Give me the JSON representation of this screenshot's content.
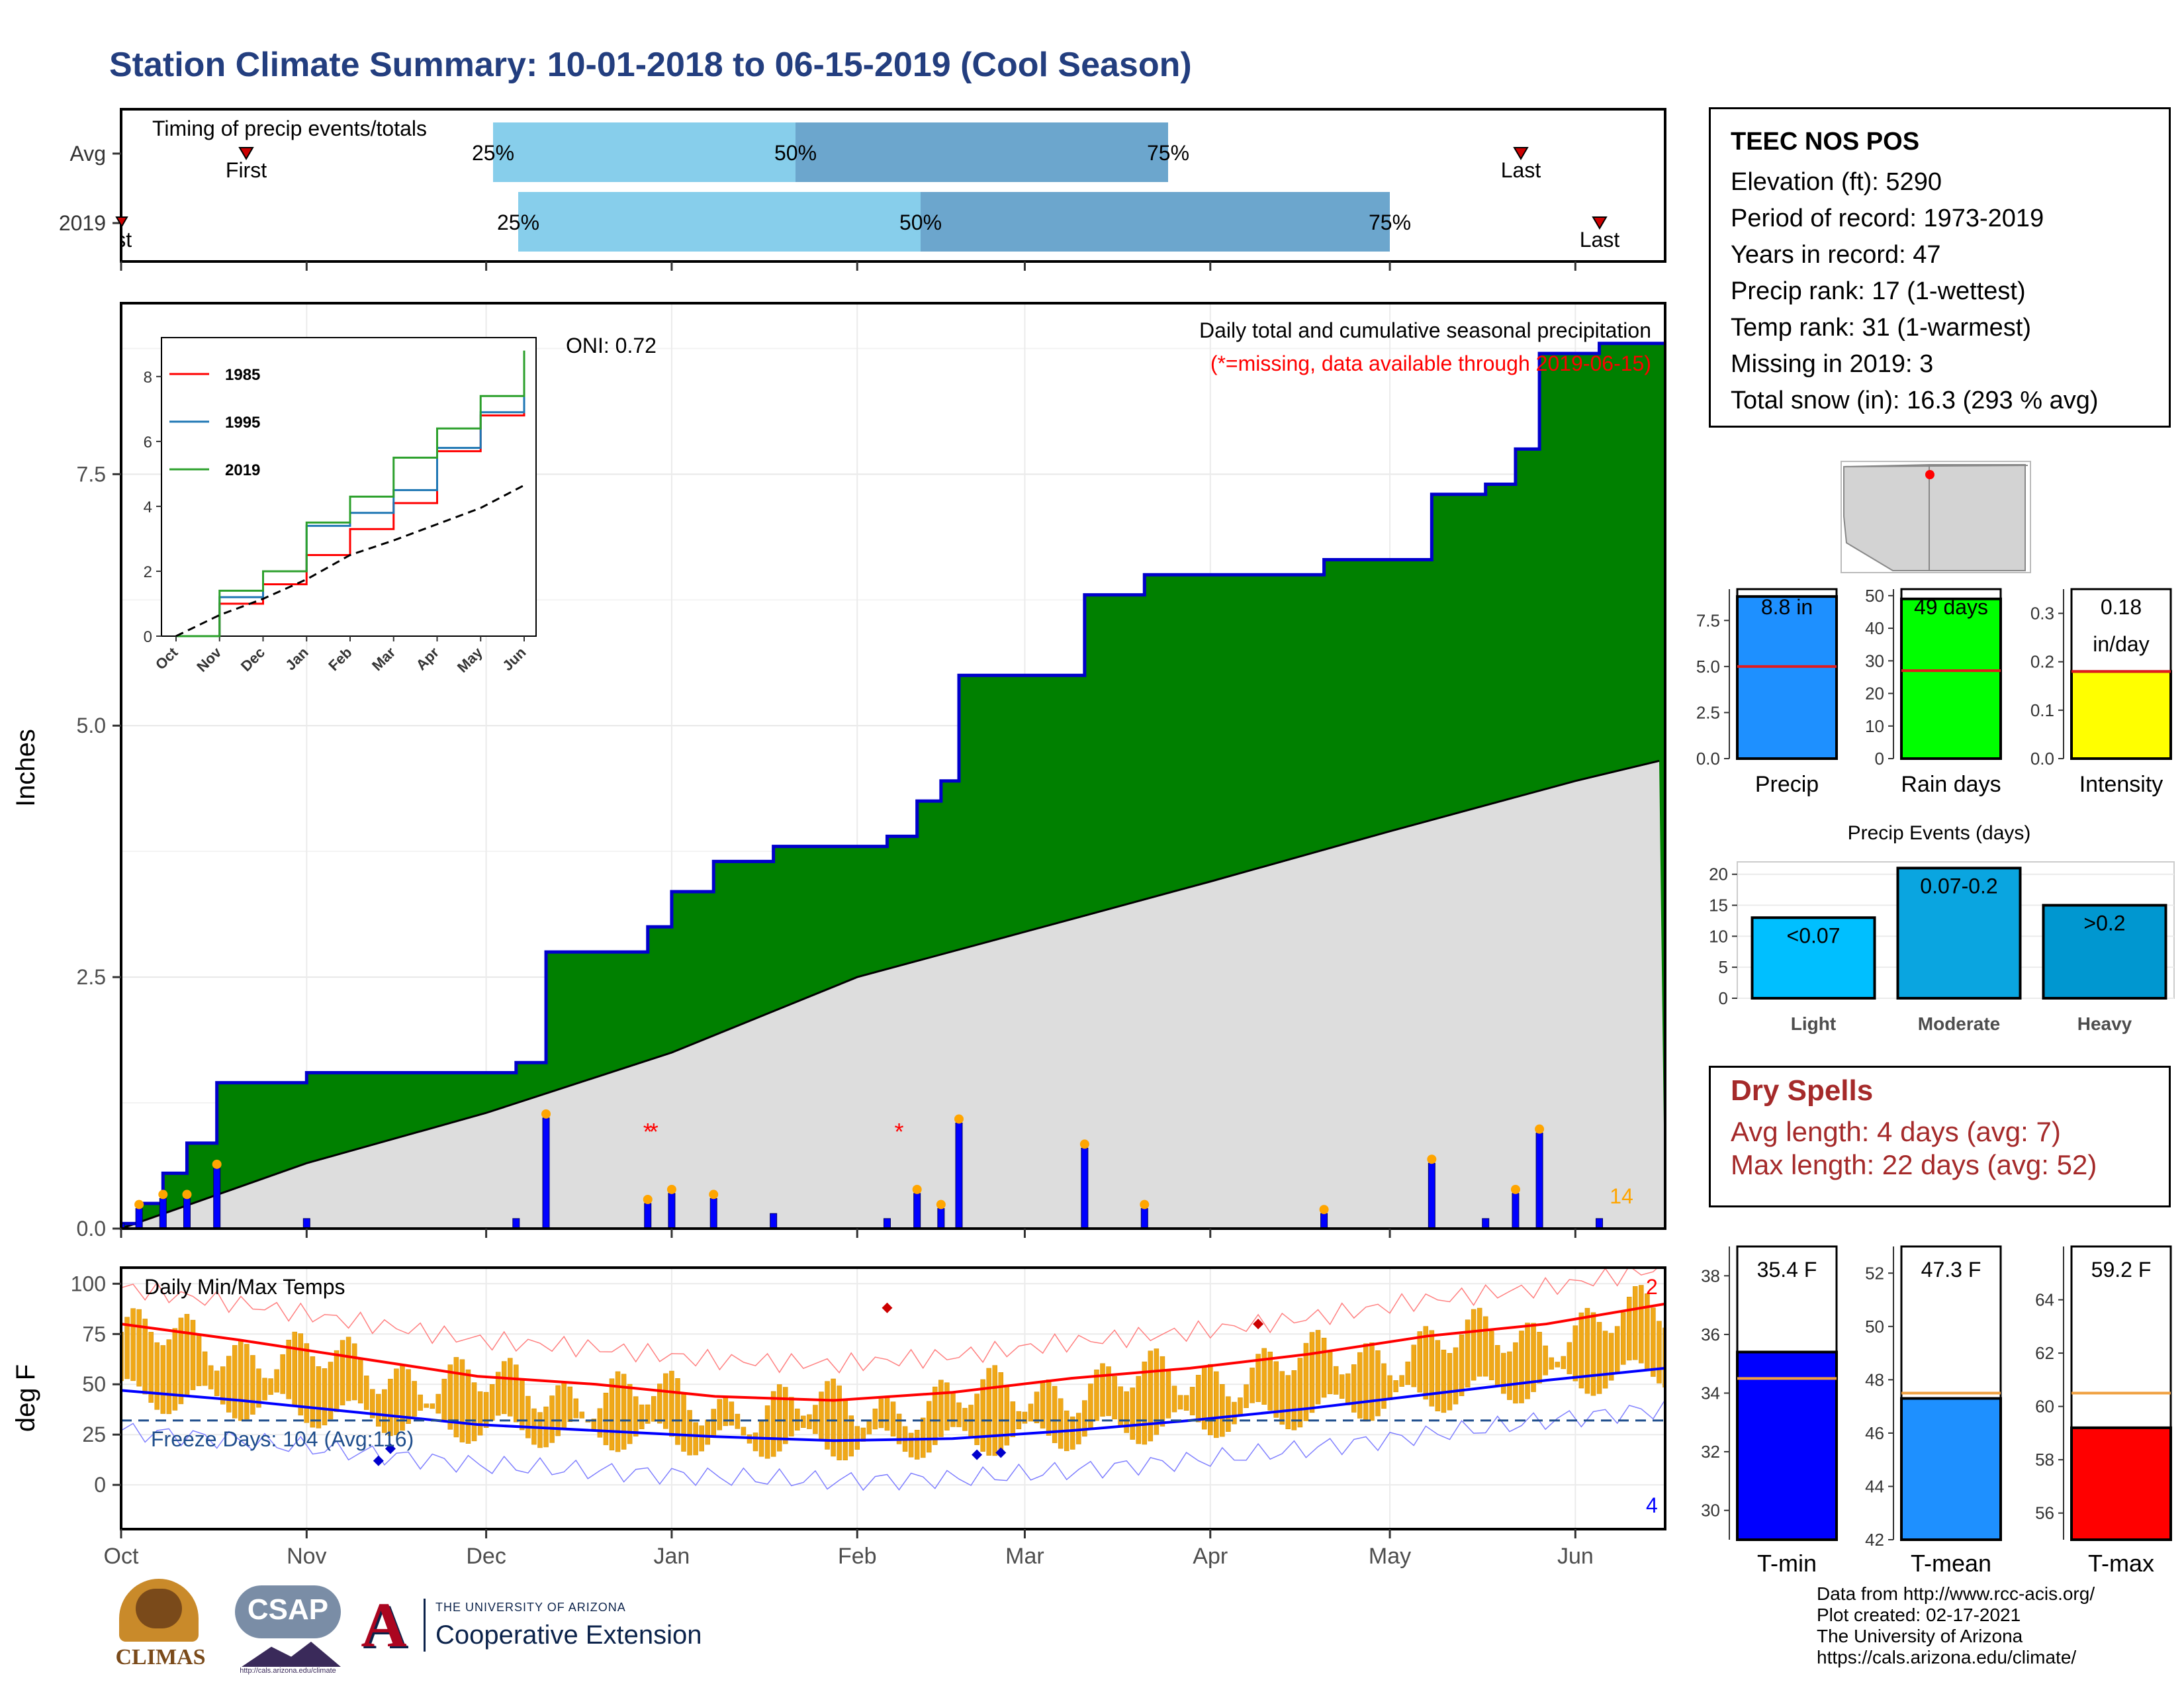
{
  "title": "Station Climate Summary: 10-01-2018 to 06-15-2019 (Cool Season)",
  "timing": {
    "label": "Timing of precip events/totals",
    "rows": [
      {
        "name": "Avg",
        "first": "First",
        "last": "Last",
        "p25": "25%",
        "p50": "50%",
        "p75": "75%"
      },
      {
        "name": "2019",
        "first": "First",
        "last": "Last",
        "p25": "25%",
        "p50": "50%",
        "p75": "75%"
      }
    ]
  },
  "station": {
    "name": "TEEC NOS POS",
    "elevation": "Elevation (ft): 5290",
    "period": "Period of record: 1973-2019",
    "years": "Years in record: 47",
    "precip_rank": "Precip rank: 17 (1-wettest)",
    "temp_rank": "Temp rank: 31 (1-warmest)",
    "missing": "Missing in 2019: 3",
    "snow": "Total snow (in): 16.3 (293 % avg)"
  },
  "precip_panel": {
    "title": "Daily total and cumulative seasonal precipitation",
    "note": "(*=missing, data available through 2019-06-15)",
    "ylabel": "Inches",
    "oni": "ONI: 0.72",
    "count_label": "14"
  },
  "temp_panel": {
    "title": "Daily Min/Max Temps",
    "ylabel": "deg F",
    "freeze": "Freeze Days: 104 (Avg:116)",
    "record_high_count": "2",
    "record_low_count": "4"
  },
  "bars": {
    "precip": {
      "value": "8.8 in",
      "label": "Precip"
    },
    "rain_days": {
      "value": "49 days",
      "label": "Rain days"
    },
    "intensity": {
      "value": "0.18",
      "unit": "in/day",
      "label": "Intensity"
    }
  },
  "events": {
    "title": "Precip Events (days)",
    "categories": [
      "Light",
      "Moderate",
      "Heavy"
    ],
    "labels": [
      "<0.07",
      "0.07-0.2",
      ">0.2"
    ],
    "values": [
      13,
      21,
      15
    ]
  },
  "dry_spells": {
    "title": "Dry Spells",
    "avg": "Avg length: 4 days (avg: 7)",
    "max": "Max length: 22 days (avg: 52)"
  },
  "temp_summary": {
    "tmin": {
      "value": "35.4 F",
      "label": "T-min"
    },
    "tmean": {
      "value": "47.3 F",
      "label": "T-mean"
    },
    "tmax": {
      "value": "59.2 F",
      "label": "T-max"
    }
  },
  "credits": [
    "Data from http://www.rcc-acis.org/",
    "Plot created: 02-17-2021",
    "The University of Arizona",
    "https://cals.arizona.edu/climate/"
  ],
  "logos": {
    "climas": "CLIMAS",
    "csap": "CSAP",
    "csap_url": "http://cals.arizona.edu/climate",
    "ua_small": "THE UNIVERSITY OF ARIZONA",
    "ua_big": "Cooperative Extension"
  },
  "colors": {
    "title": "#233e7f",
    "cum_fill": "#008000",
    "cum_line": "#0000cc",
    "avg_fill": "#dddddd",
    "bar_precip": "#1e90ff",
    "bar_rain": "#00ff00",
    "bar_int": "#ffff00",
    "ev_light": "#00bfff",
    "ev_mod": "#0aa5e0",
    "ev_heavy": "#0097d0",
    "tmin": "#0000ff",
    "tmean": "#1e90ff",
    "tmax": "#ff0000"
  },
  "chart_data": [
    {
      "type": "area",
      "title": "Daily total and cumulative seasonal precipitation",
      "ylabel": "Inches",
      "x_ticks": [
        "Oct",
        "Nov",
        "Dec",
        "Jan",
        "Feb",
        "Mar",
        "Apr",
        "May",
        "Jun"
      ],
      "y_ticks": [
        0.0,
        2.5,
        5.0,
        7.5
      ],
      "ylim": [
        0,
        9.2
      ],
      "series": [
        {
          "name": "2019",
          "x": [
            "10-01",
            "10-04",
            "10-08",
            "10-12",
            "10-17",
            "11-01",
            "12-06",
            "12-11",
            "12-28",
            "01-01",
            "01-08",
            "01-18",
            "02-06",
            "02-11",
            "02-15",
            "02-18",
            "03-05",
            "03-11",
            "03-21",
            "04-20",
            "05-08",
            "05-17",
            "05-22",
            "05-26",
            "06-05",
            "06-15"
          ],
          "values": [
            0.05,
            0.25,
            0.55,
            0.85,
            1.45,
            1.55,
            1.65,
            2.75,
            3.0,
            3.35,
            3.65,
            3.8,
            3.9,
            4.25,
            4.45,
            5.5,
            5.5,
            6.3,
            6.5,
            6.65,
            7.3,
            7.4,
            7.75,
            8.7,
            8.8,
            8.8
          ]
        },
        {
          "name": "Avg",
          "x": [
            "10-01",
            "11-01",
            "12-01",
            "01-01",
            "02-01",
            "03-01",
            "04-01",
            "05-01",
            "06-01",
            "06-15"
          ],
          "values": [
            0.0,
            0.65,
            1.15,
            1.75,
            2.5,
            2.95,
            3.45,
            3.95,
            4.45,
            4.65
          ]
        }
      ]
    },
    {
      "type": "line",
      "title": "",
      "x_ticks": [
        "Oct",
        "Nov",
        "Dec",
        "Jan",
        "Feb",
        "Mar",
        "Apr",
        "May",
        "Jun"
      ],
      "y_ticks": [
        0,
        2,
        4,
        6,
        8
      ],
      "series": [
        {
          "name": "1985",
          "values": [
            0,
            1.0,
            1.6,
            2.5,
            3.3,
            4.1,
            5.7,
            6.8,
            7.3
          ]
        },
        {
          "name": "1995",
          "values": [
            0,
            1.2,
            2.0,
            3.4,
            3.8,
            4.5,
            5.8,
            6.9,
            7.8
          ]
        },
        {
          "name": "2019",
          "values": [
            0,
            1.4,
            2.0,
            3.5,
            4.3,
            5.5,
            6.4,
            7.4,
            8.8
          ]
        },
        {
          "name": "Avg",
          "values": [
            0,
            0.65,
            1.15,
            1.75,
            2.5,
            2.95,
            3.45,
            3.95,
            4.65
          ]
        }
      ]
    },
    {
      "type": "line",
      "title": "Daily Min/Max Temps",
      "ylabel": "deg F",
      "y_ticks": [
        0,
        25,
        50,
        75,
        100
      ],
      "series": [
        {
          "name": "Avg max",
          "values": [
            80,
            72,
            63,
            54,
            50,
            44,
            42,
            46,
            53,
            58,
            65,
            74,
            80,
            90
          ]
        },
        {
          "name": "Avg min",
          "values": [
            47,
            42,
            36,
            30,
            27,
            24,
            22,
            23,
            27,
            32,
            38,
            45,
            52,
            58
          ]
        }
      ]
    },
    {
      "type": "bar",
      "title": "Precip Events (days)",
      "categories": [
        "Light",
        "Moderate",
        "Heavy"
      ],
      "values": [
        13,
        21,
        15
      ],
      "y_ticks": [
        0,
        5,
        10,
        15,
        20
      ]
    },
    {
      "type": "bar",
      "categories": [
        "Precip",
        "Rain days",
        "Intensity"
      ],
      "values": [
        8.8,
        49,
        0.18
      ],
      "averages": [
        5.0,
        27,
        0.18
      ]
    },
    {
      "type": "bar",
      "categories": [
        "T-min",
        "T-mean",
        "T-max"
      ],
      "values": [
        35.4,
        47.3,
        59.2
      ],
      "averages": [
        34.5,
        47.5,
        60.5
      ]
    }
  ]
}
